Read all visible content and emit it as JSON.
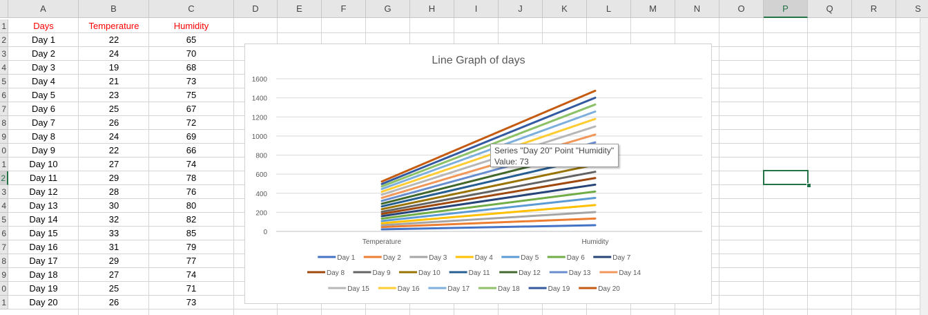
{
  "columns": [
    "A",
    "B",
    "C",
    "D",
    "E",
    "F",
    "G",
    "H",
    "I",
    "J",
    "K",
    "L",
    "M",
    "N",
    "O",
    "P",
    "Q",
    "R",
    "S"
  ],
  "selected_column": "P",
  "selected_row": "2",
  "rows": [
    "1",
    "2",
    "3",
    "4",
    "5",
    "6",
    "7",
    "8",
    "9",
    "0",
    "1",
    "2",
    "3",
    "4",
    "5",
    "6",
    "7",
    "8",
    "9",
    "0",
    "1"
  ],
  "table": {
    "headers": [
      "Days",
      "Temperature",
      "Humidity"
    ],
    "header_color": "#ff0000",
    "records": [
      [
        "Day 1",
        22,
        65
      ],
      [
        "Day 2",
        24,
        70
      ],
      [
        "Day 3",
        19,
        68
      ],
      [
        "Day 4",
        21,
        73
      ],
      [
        "Day 5",
        23,
        75
      ],
      [
        "Day 6",
        25,
        67
      ],
      [
        "Day 7",
        26,
        72
      ],
      [
        "Day 8",
        24,
        69
      ],
      [
        "Day 9",
        22,
        66
      ],
      [
        "Day 10",
        27,
        74
      ],
      [
        "Day 11",
        29,
        78
      ],
      [
        "Day 12",
        28,
        76
      ],
      [
        "Day 13",
        30,
        80
      ],
      [
        "Day 14",
        32,
        82
      ],
      [
        "Day 15",
        33,
        85
      ],
      [
        "Day 16",
        31,
        79
      ],
      [
        "Day 17",
        29,
        77
      ],
      [
        "Day 18",
        27,
        74
      ],
      [
        "Day 19",
        25,
        71
      ],
      [
        "Day 20",
        26,
        73
      ]
    ]
  },
  "chart_data": {
    "type": "line",
    "stacked": true,
    "title": "Line Graph of days",
    "categories": [
      "Temperature",
      "Humidity"
    ],
    "ylim": [
      0,
      1600
    ],
    "yticks": [
      "0",
      "200",
      "400",
      "600",
      "800",
      "1000",
      "1200",
      "1400",
      "1600"
    ],
    "grid": true,
    "legend_position": "bottom",
    "series": [
      {
        "name": "Day 1",
        "values": [
          22,
          65
        ],
        "color": "#4472c4"
      },
      {
        "name": "Day 2",
        "values": [
          24,
          70
        ],
        "color": "#ed7d31"
      },
      {
        "name": "Day 3",
        "values": [
          19,
          68
        ],
        "color": "#a5a5a5"
      },
      {
        "name": "Day 4",
        "values": [
          21,
          73
        ],
        "color": "#ffc000"
      },
      {
        "name": "Day 5",
        "values": [
          23,
          75
        ],
        "color": "#5b9bd5"
      },
      {
        "name": "Day 6",
        "values": [
          25,
          67
        ],
        "color": "#70ad47"
      },
      {
        "name": "Day 7",
        "values": [
          26,
          72
        ],
        "color": "#264478"
      },
      {
        "name": "Day 8",
        "values": [
          24,
          69
        ],
        "color": "#9e480e"
      },
      {
        "name": "Day 9",
        "values": [
          22,
          66
        ],
        "color": "#636363"
      },
      {
        "name": "Day 10",
        "values": [
          27,
          74
        ],
        "color": "#997300"
      },
      {
        "name": "Day 11",
        "values": [
          29,
          78
        ],
        "color": "#255e91"
      },
      {
        "name": "Day 12",
        "values": [
          28,
          76
        ],
        "color": "#43682b"
      },
      {
        "name": "Day 13",
        "values": [
          30,
          80
        ],
        "color": "#698ed0"
      },
      {
        "name": "Day 14",
        "values": [
          32,
          82
        ],
        "color": "#f1975a"
      },
      {
        "name": "Day 15",
        "values": [
          33,
          85
        ],
        "color": "#b7b7b7"
      },
      {
        "name": "Day 16",
        "values": [
          31,
          79
        ],
        "color": "#ffcd33"
      },
      {
        "name": "Day 17",
        "values": [
          29,
          77
        ],
        "color": "#7cafdd"
      },
      {
        "name": "Day 18",
        "values": [
          27,
          74
        ],
        "color": "#8cc168"
      },
      {
        "name": "Day 19",
        "values": [
          25,
          71
        ],
        "color": "#335aa1"
      },
      {
        "name": "Day 20",
        "values": [
          26,
          73
        ],
        "color": "#c55a11"
      }
    ],
    "tooltip": {
      "line1": "Series \"Day 20\" Point \"Humidity\"",
      "line2": "Value: 73"
    }
  }
}
